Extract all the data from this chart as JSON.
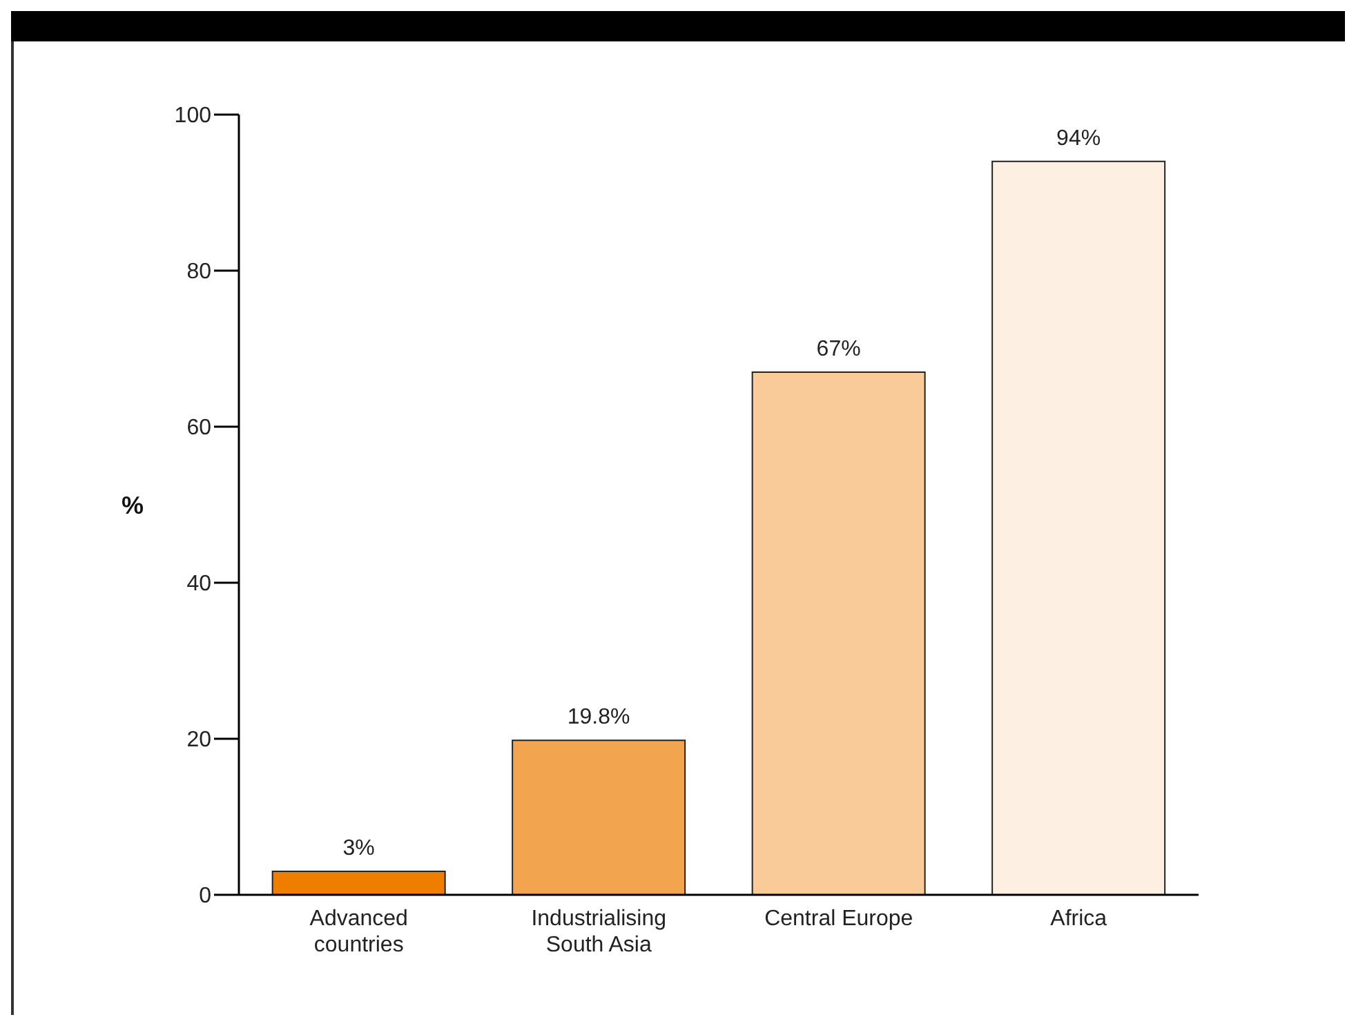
{
  "chart_data": {
    "type": "bar",
    "ylabel": "%",
    "categories": [
      "Advanced countries",
      "Industrialising South Asia",
      "Central Europe",
      "Africa"
    ],
    "values": [
      3,
      19.8,
      67,
      94
    ],
    "colors": [
      "#ee7d00",
      "#f2a54e",
      "#f8cb98",
      "#fdf0e3"
    ],
    "value_labels": [
      "3%",
      "19.8%",
      "67%",
      "94%"
    ],
    "ylim": [
      0,
      100
    ],
    "yticks": [
      0,
      20,
      40,
      60,
      80,
      100
    ],
    "grid": false
  }
}
